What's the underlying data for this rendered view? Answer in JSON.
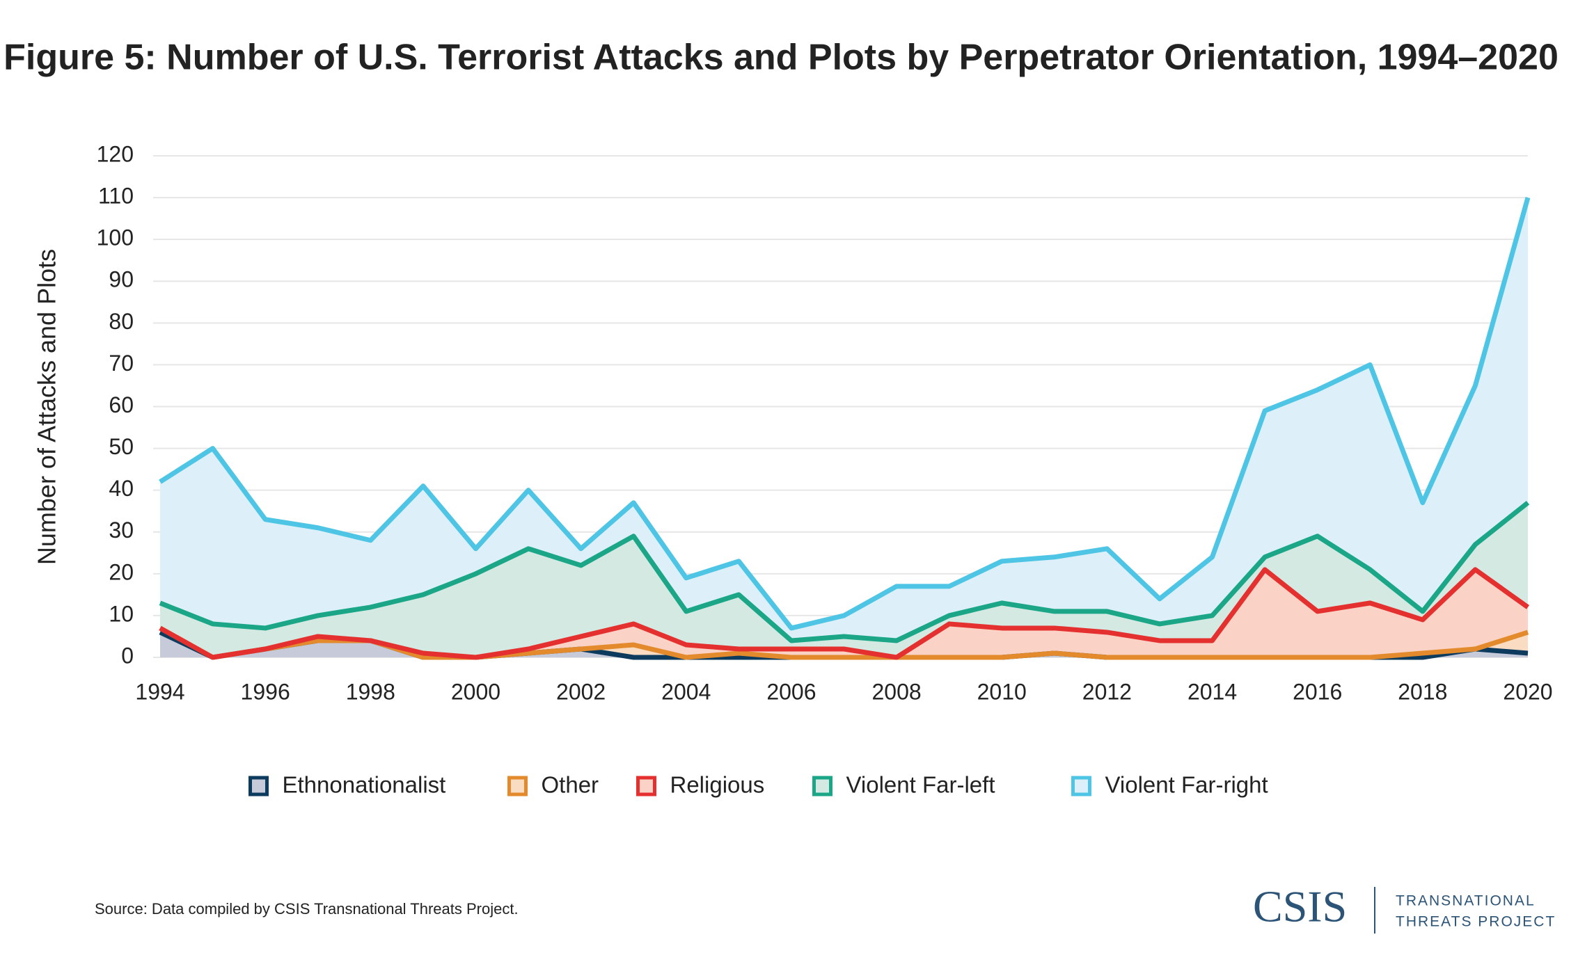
{
  "chart_data": {
    "type": "stacked-area",
    "title": "Figure 5: Number of U.S. Terrorist Attacks and Plots by Perpetrator Orientation, 1994–2020",
    "y_label": "Number of Attacks and Plots",
    "x": [
      1994,
      1995,
      1996,
      1997,
      1998,
      1999,
      2000,
      2001,
      2002,
      2003,
      2004,
      2005,
      2006,
      2007,
      2008,
      2009,
      2010,
      2011,
      2012,
      2013,
      2014,
      2015,
      2016,
      2017,
      2018,
      2019,
      2020
    ],
    "xlim": [
      1994,
      2020
    ],
    "xticks": [
      1994,
      1996,
      1998,
      2000,
      2002,
      2004,
      2006,
      2008,
      2010,
      2012,
      2014,
      2016,
      2018,
      2020
    ],
    "ylim": [
      0,
      120
    ],
    "yticks": [
      0,
      10,
      20,
      30,
      40,
      50,
      60,
      70,
      80,
      90,
      100,
      110,
      120
    ],
    "grid": true,
    "series": [
      {
        "name": "Ethnonationalist",
        "color": "#0d3b5e",
        "fill": "#c7cad9",
        "values": [
          6,
          0,
          2,
          4,
          4,
          0,
          0,
          1,
          2,
          0,
          0,
          0,
          0,
          0,
          0,
          0,
          0,
          1,
          0,
          0,
          0,
          0,
          0,
          0,
          0,
          2,
          1
        ]
      },
      {
        "name": "Other",
        "color": "#e38b2c",
        "fill": "#f9dcc2",
        "values": [
          1,
          0,
          0,
          0,
          0,
          0,
          0,
          0,
          0,
          3,
          0,
          1,
          0,
          0,
          0,
          0,
          0,
          0,
          0,
          0,
          0,
          0,
          0,
          0,
          1,
          0,
          5
        ]
      },
      {
        "name": "Religious",
        "color": "#e4312f",
        "fill": "#fad3c6",
        "values": [
          0,
          0,
          0,
          1,
          0,
          1,
          0,
          1,
          3,
          5,
          3,
          1,
          2,
          2,
          0,
          8,
          7,
          6,
          6,
          4,
          4,
          21,
          11,
          13,
          8,
          19,
          6
        ]
      },
      {
        "name": "Violent Far-left",
        "color": "#1aa687",
        "fill": "#d4e9e1",
        "values": [
          6,
          8,
          5,
          5,
          8,
          14,
          20,
          24,
          17,
          21,
          8,
          13,
          2,
          3,
          4,
          2,
          6,
          4,
          5,
          4,
          6,
          3,
          18,
          8,
          2,
          6,
          25
        ]
      },
      {
        "name": "Violent Far-right",
        "color": "#4ec5e4",
        "fill": "#ddf0f9",
        "values": [
          29,
          42,
          26,
          21,
          16,
          26,
          6,
          14,
          4,
          8,
          8,
          8,
          3,
          5,
          13,
          7,
          10,
          13,
          15,
          6,
          14,
          35,
          35,
          49,
          26,
          38,
          73
        ]
      }
    ],
    "source": "Source: Data compiled by CSIS Transnational Threats Project.",
    "logo": {
      "name": "CSIS",
      "line1": "TRANSNATIONAL",
      "line2": "THREATS PROJECT"
    }
  }
}
